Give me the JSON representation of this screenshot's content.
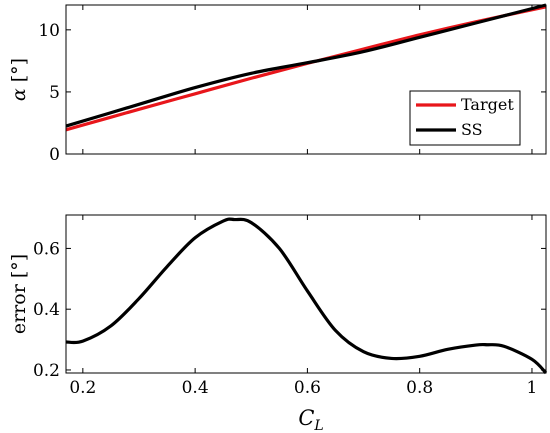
{
  "chart_data": [
    {
      "type": "line",
      "title": "",
      "ylabel_symbol": "α",
      "ylabel_unit": "[°]",
      "xlim": [
        0.17,
        1.025
      ],
      "ylim": [
        0,
        12
      ],
      "xticks": [
        0.2,
        0.4,
        0.6,
        0.8,
        1
      ],
      "yticks": [
        0,
        5,
        10
      ],
      "ytick_labels": [
        "0",
        "5",
        "10"
      ],
      "grid": false,
      "legend": "lower-right",
      "series": [
        {
          "name": "Target",
          "color": "#e8161b",
          "x": [
            0.17,
            0.3,
            0.4,
            0.5,
            0.6,
            0.7,
            0.8,
            0.9,
            1.025
          ],
          "y": [
            1.95,
            3.6,
            4.85,
            6.1,
            7.3,
            8.45,
            9.6,
            10.65,
            11.85
          ]
        },
        {
          "name": "SS",
          "color": "#000000",
          "x": [
            0.17,
            0.3,
            0.4,
            0.5,
            0.6,
            0.7,
            0.8,
            0.9,
            1.025
          ],
          "y": [
            2.25,
            4.0,
            5.35,
            6.5,
            7.35,
            8.25,
            9.4,
            10.55,
            12.0
          ]
        }
      ]
    },
    {
      "type": "line",
      "title": "",
      "xlabel_symbol": "C",
      "xlabel_sub": "L",
      "ylabel": "error [°]",
      "xlim": [
        0.17,
        1.025
      ],
      "ylim": [
        0.19,
        0.71
      ],
      "xticks": [
        0.2,
        0.4,
        0.6,
        0.8,
        1
      ],
      "xtick_labels": [
        "0.2",
        "0.4",
        "0.6",
        "0.8",
        "1"
      ],
      "yticks": [
        0.2,
        0.4,
        0.6
      ],
      "ytick_labels": [
        "0.2",
        "0.4",
        "0.6"
      ],
      "grid": false,
      "series": [
        {
          "color": "#000000",
          "x": [
            0.17,
            0.2,
            0.25,
            0.3,
            0.35,
            0.4,
            0.45,
            0.47,
            0.5,
            0.55,
            0.6,
            0.65,
            0.7,
            0.75,
            0.8,
            0.85,
            0.9,
            0.92,
            0.95,
            1.0,
            1.025
          ],
          "y": [
            0.292,
            0.295,
            0.345,
            0.435,
            0.54,
            0.635,
            0.69,
            0.695,
            0.685,
            0.6,
            0.46,
            0.33,
            0.26,
            0.238,
            0.245,
            0.268,
            0.282,
            0.283,
            0.278,
            0.235,
            0.19
          ]
        }
      ]
    }
  ]
}
